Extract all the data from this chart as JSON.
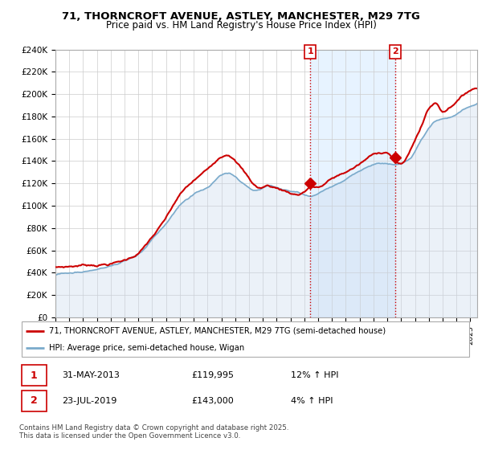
{
  "title_line1": "71, THORNCROFT AVENUE, ASTLEY, MANCHESTER, M29 7TG",
  "title_line2": "Price paid vs. HM Land Registry's House Price Index (HPI)",
  "ylabel_ticks": [
    "£0",
    "£20K",
    "£40K",
    "£60K",
    "£80K",
    "£100K",
    "£120K",
    "£140K",
    "£160K",
    "£180K",
    "£200K",
    "£220K",
    "£240K"
  ],
  "ytick_vals": [
    0,
    20000,
    40000,
    60000,
    80000,
    100000,
    120000,
    140000,
    160000,
    180000,
    200000,
    220000,
    240000
  ],
  "ylim": [
    0,
    240000
  ],
  "xlim_start": 1995.0,
  "xlim_end": 2025.5,
  "property_color": "#cc0000",
  "hpi_color": "#c8d8ec",
  "hpi_line_color": "#7aaacb",
  "marker1_x": 2013.42,
  "marker1_y": 119995,
  "marker1_label": "1",
  "marker1_date": "31-MAY-2013",
  "marker1_price": "£119,995",
  "marker1_hpi": "12% ↑ HPI",
  "marker2_x": 2019.56,
  "marker2_y": 143000,
  "marker2_label": "2",
  "marker2_date": "23-JUL-2019",
  "marker2_price": "£143,000",
  "marker2_hpi": "4% ↑ HPI",
  "legend_property": "71, THORNCROFT AVENUE, ASTLEY, MANCHESTER, M29 7TG (semi-detached house)",
  "legend_hpi": "HPI: Average price, semi-detached house, Wigan",
  "footnote": "Contains HM Land Registry data © Crown copyright and database right 2025.\nThis data is licensed under the Open Government Licence v3.0.",
  "vline_color": "#cc0000",
  "shade_color": "#ddeeff",
  "bg_color": "#f0f4f8"
}
